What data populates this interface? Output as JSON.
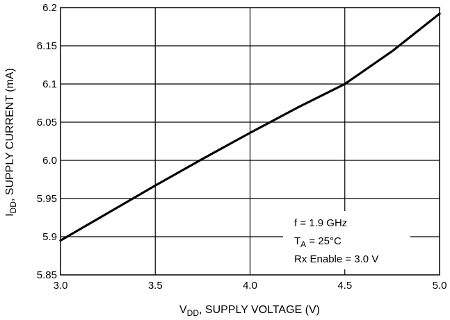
{
  "chart_data": {
    "type": "line",
    "x_axis": {
      "label_main": "V",
      "label_sub": "DD",
      "label_rest": ", SUPPLY VOLTAGE (V)",
      "lim": [
        3.0,
        5.0
      ],
      "ticks": [
        3.0,
        3.5,
        4.0,
        4.5,
        5.0
      ],
      "tick_labels": [
        "3.0",
        "3.5",
        "4.0",
        "4.5",
        "5.0"
      ]
    },
    "y_axis": {
      "label_main": "I",
      "label_sub": "DD",
      "label_rest": ", SUPPLY CURRENT (mA)",
      "lim": [
        5.85,
        6.2
      ],
      "ticks": [
        5.85,
        5.9,
        5.95,
        6.0,
        6.05,
        6.1,
        6.15,
        6.2
      ],
      "tick_labels": [
        "5.85",
        "5.9",
        "5.95",
        "6.0",
        "6.05",
        "6.1",
        "6.15",
        "6.2"
      ]
    },
    "grid": true,
    "series": [
      {
        "x": [
          3.0,
          3.25,
          3.5,
          3.75,
          4.0,
          4.25,
          4.5,
          4.75,
          5.0
        ],
        "y": [
          5.895,
          5.931,
          5.967,
          6.002,
          6.036,
          6.069,
          6.1,
          6.143,
          6.192
        ]
      }
    ],
    "annotations": {
      "line1": "f = 1.9 GHz",
      "line2_main": "T",
      "line2_sub": "A",
      "line2_rest": " = 25°C",
      "line3": "Rx Enable = 3.0 V"
    }
  }
}
